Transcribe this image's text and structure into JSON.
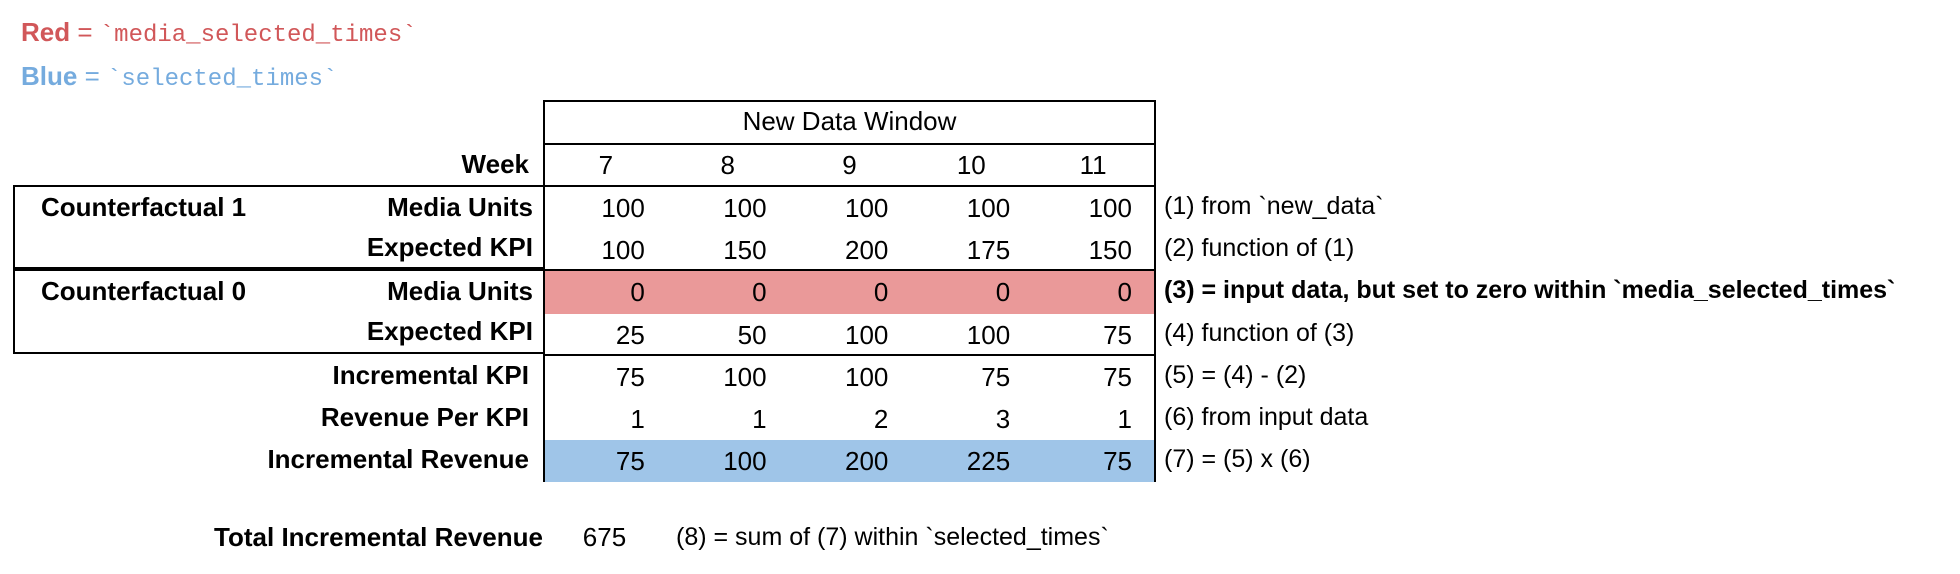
{
  "legend": {
    "red": {
      "label": "Red",
      "eq": " = ",
      "code": "`media_selected_times`"
    },
    "blue": {
      "label": "Blue",
      "eq": " = ",
      "code": "`selected_times`"
    }
  },
  "colors": {
    "red_text": "#D15759",
    "blue_text": "#75ABDE",
    "red_fill": "#EA9999",
    "blue_fill": "#9FC5E8"
  },
  "table": {
    "header": "New Data Window",
    "week_label": "Week",
    "weeks": [
      "7",
      "8",
      "9",
      "10",
      "11"
    ],
    "rows": [
      {
        "group": "Counterfactual 1",
        "label": "Media Units",
        "values": [
          "100",
          "100",
          "100",
          "100",
          "100"
        ],
        "annotation": "(1) from `new_data`"
      },
      {
        "group": "",
        "label": "Expected KPI",
        "values": [
          "100",
          "150",
          "200",
          "175",
          "150"
        ],
        "annotation": "(2) function of (1)"
      },
      {
        "group": "Counterfactual 0",
        "label": "Media Units",
        "values": [
          "0",
          "0",
          "0",
          "0",
          "0"
        ],
        "annotation": "(3) = input data, but set to zero within `media_selected_times`",
        "highlight": "red"
      },
      {
        "group": "",
        "label": "Expected KPI",
        "values": [
          "25",
          "50",
          "100",
          "100",
          "75"
        ],
        "annotation": "(4) function of (3)"
      },
      {
        "label": "Incremental KPI",
        "values": [
          "75",
          "100",
          "100",
          "75",
          "75"
        ],
        "annotation": "(5) = (4) - (2)"
      },
      {
        "label": "Revenue Per KPI",
        "values": [
          "1",
          "1",
          "2",
          "3",
          "1"
        ],
        "annotation": "(6) from input data"
      },
      {
        "label": "Incremental Revenue",
        "values": [
          "75",
          "100",
          "200",
          "225",
          "75"
        ],
        "annotation": "(7) = (5) x (6)",
        "highlight": "blue"
      }
    ]
  },
  "total": {
    "label": "Total Incremental Revenue",
    "value": "675",
    "annotation": "(8) = sum of (7) within `selected_times`"
  }
}
